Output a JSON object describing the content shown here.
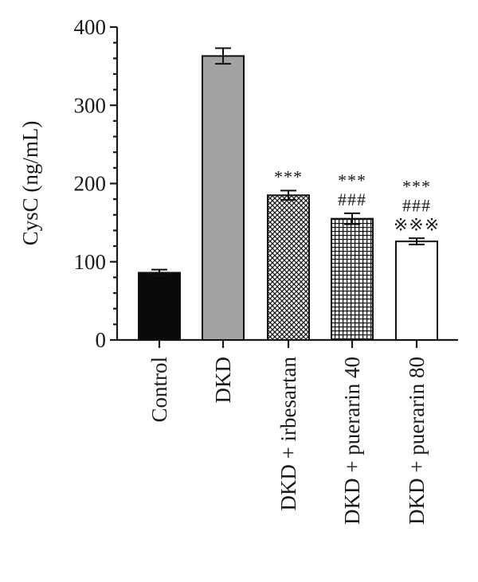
{
  "chart_data": {
    "type": "bar",
    "title": "",
    "xlabel": "",
    "ylabel": "CysC (ng/mL)",
    "ylim": [
      0,
      400
    ],
    "y_ticks": [
      "0",
      "100",
      "200",
      "300",
      "400"
    ],
    "grid": false,
    "categories": [
      "Control",
      "DKD",
      "DKD + irbesartan",
      "DKD + puerarin 40",
      "DKD + puerarin 80"
    ],
    "values": [
      86,
      363,
      185,
      155,
      126
    ],
    "errors": [
      4,
      10,
      6,
      7,
      4
    ],
    "bar_fills": [
      "solid-black",
      "solid-gray",
      "crosshatch",
      "grid",
      "white"
    ],
    "colors": {
      "black": "#0a0a0a",
      "gray": "#a3a3a3",
      "white": "#ffffff"
    },
    "significance": [
      [],
      [],
      [
        "***"
      ],
      [
        "***",
        "###"
      ],
      [
        "***",
        "###",
        "※※※"
      ]
    ]
  }
}
